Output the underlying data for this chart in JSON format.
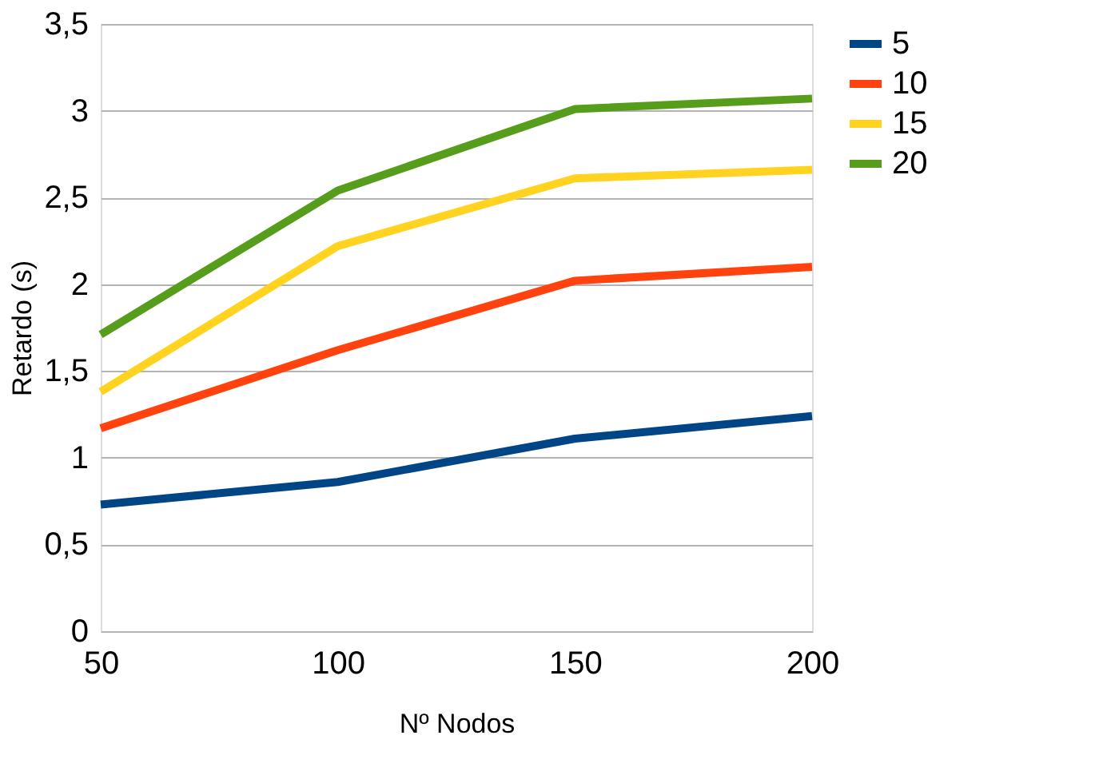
{
  "chart_data": {
    "type": "line",
    "xlabel": "Nº Nodos",
    "ylabel": "Retardo (s)",
    "x": [
      50,
      100,
      150,
      200
    ],
    "series": [
      {
        "name": "5",
        "color": "#004586",
        "values": [
          0.73,
          0.86,
          1.11,
          1.24
        ]
      },
      {
        "name": "10",
        "color": "#ff420e",
        "values": [
          1.17,
          1.62,
          2.02,
          2.1
        ]
      },
      {
        "name": "15",
        "color": "#ffd320",
        "values": [
          1.38,
          2.22,
          2.61,
          2.66
        ]
      },
      {
        "name": "20",
        "color": "#579d1c",
        "values": [
          1.71,
          2.54,
          3.01,
          3.07
        ]
      }
    ],
    "xlim": [
      50,
      200
    ],
    "xticks": [
      50,
      100,
      150,
      200
    ],
    "ylim": [
      0,
      3.5
    ],
    "yticks": [
      0,
      {
        "value": 0.5,
        "label": "0,5"
      },
      1,
      {
        "value": 1.5,
        "label": "1,5"
      },
      2,
      {
        "value": 2.5,
        "label": "2,5"
      },
      3,
      {
        "value": 3.5,
        "label": "3,5"
      }
    ],
    "grid": "y",
    "legend": "right",
    "marker": "none",
    "line_style": "solid"
  }
}
